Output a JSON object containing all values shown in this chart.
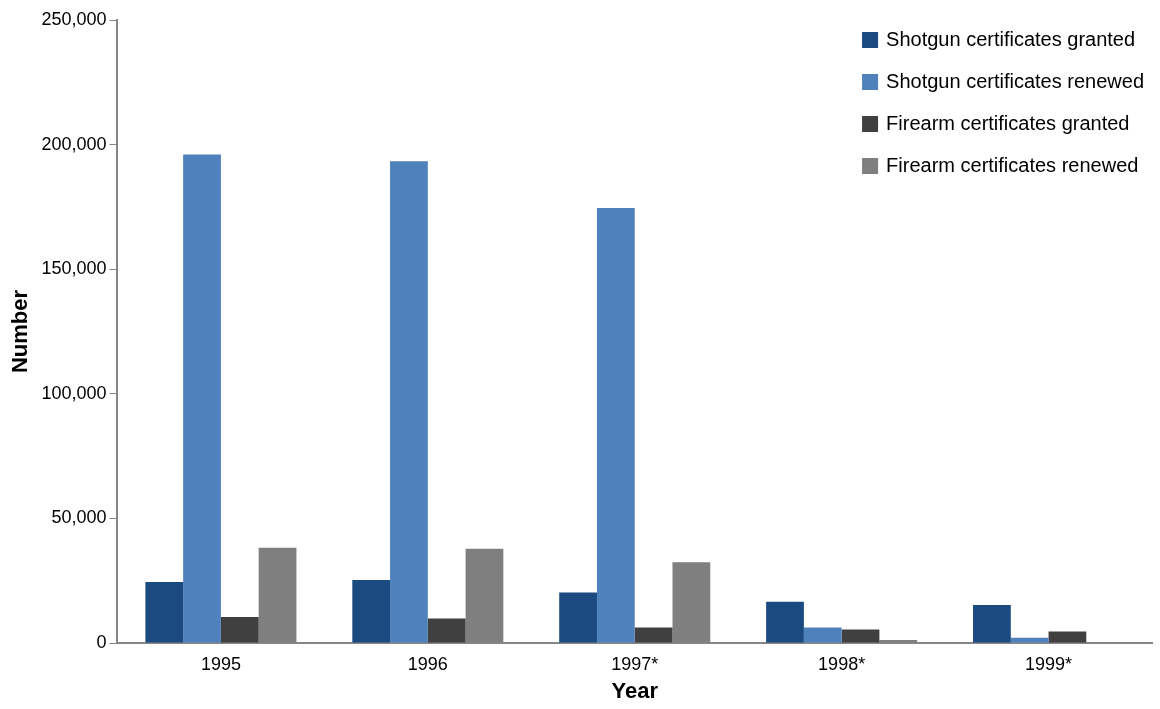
{
  "chart_data": {
    "type": "bar",
    "xlabel": "Year",
    "ylabel": "Number",
    "categories": [
      "1995",
      "1996",
      "1997*",
      "1998*",
      "1999*"
    ],
    "series": [
      {
        "name": "Shotgun certificates granted",
        "color": "#1a4a80",
        "values": [
          24500,
          25300,
          20300,
          16600,
          15200
        ]
      },
      {
        "name": "Shotgun certificates renewed",
        "color": "#4f81bd",
        "values": [
          196000,
          193300,
          174600,
          6200,
          2100
        ]
      },
      {
        "name": "Firearm certificates granted",
        "color": "#404040",
        "values": [
          10400,
          9800,
          6200,
          5400,
          4600
        ]
      },
      {
        "name": "Firearm certificates renewed",
        "color": "#7f7f7f",
        "values": [
          38200,
          37800,
          32400,
          1200,
          0
        ]
      }
    ],
    "ylim": [
      0,
      250000
    ],
    "yticks": [
      {
        "value": 0,
        "label": "0"
      },
      {
        "value": 50000,
        "label": "50,000"
      },
      {
        "value": 100000,
        "label": "100,000"
      },
      {
        "value": 150000,
        "label": "150,000"
      },
      {
        "value": 200000,
        "label": "200,000"
      },
      {
        "value": 250000,
        "label": "250,000"
      }
    ],
    "grid": false,
    "legend": "top right"
  }
}
